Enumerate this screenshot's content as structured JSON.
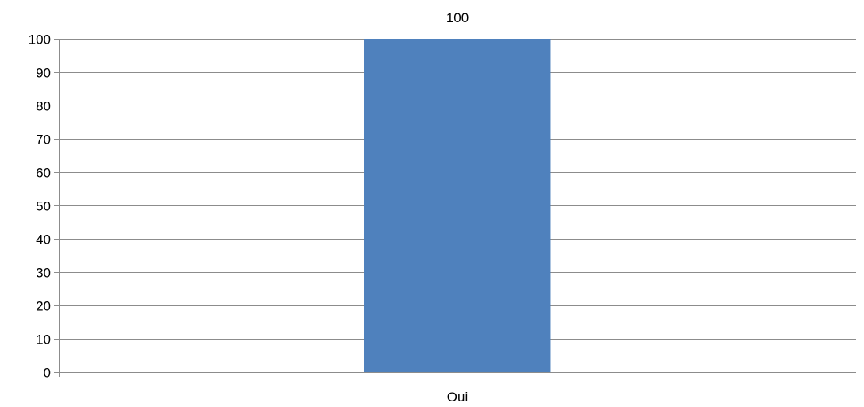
{
  "chart_data": {
    "type": "bar",
    "categories": [
      "Oui"
    ],
    "values": [
      100
    ],
    "data_labels": [
      "100"
    ],
    "title": "",
    "xlabel": "",
    "ylabel": "",
    "ylim": [
      0,
      100
    ],
    "y_ticks": [
      0,
      10,
      20,
      30,
      40,
      50,
      60,
      70,
      80,
      90,
      100
    ],
    "grid": true,
    "legend": "none",
    "colors": {
      "bar": "#4F81BD",
      "grid": "#8C8C8C",
      "axis": "#8C8C8C",
      "text": "#000000"
    }
  }
}
